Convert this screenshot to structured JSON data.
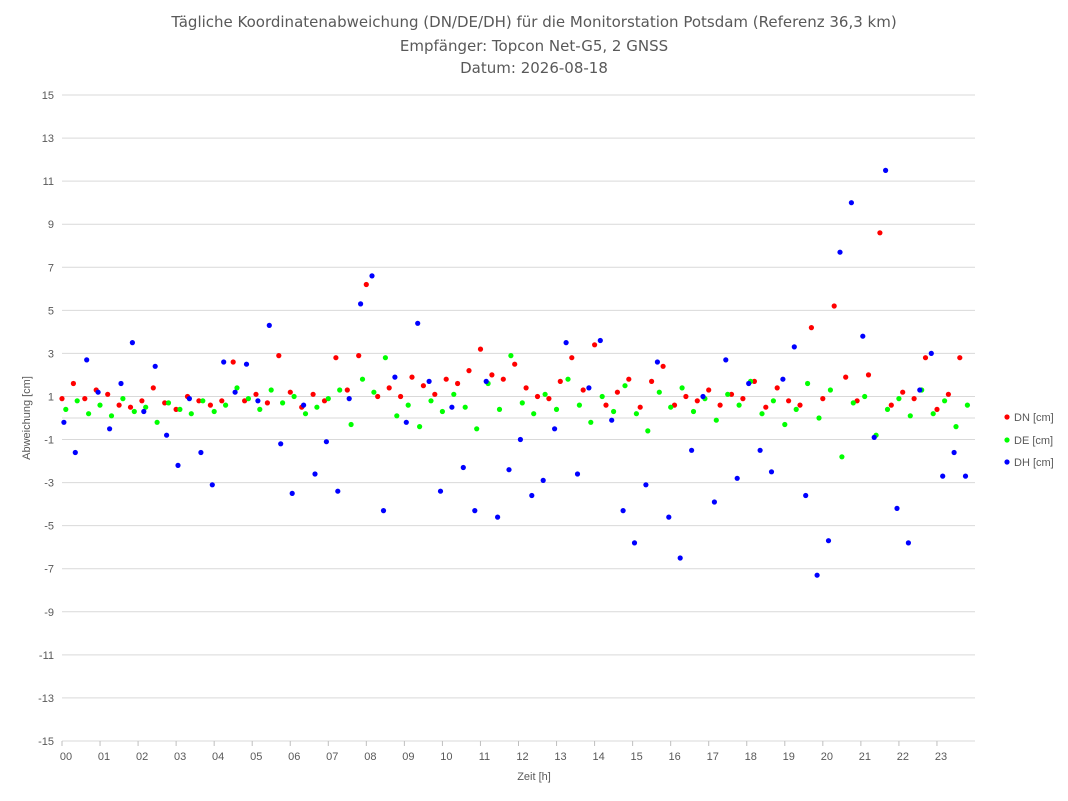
{
  "title_lines": [
    "Tägliche Koordinatenabweichung (DN/DE/DH) für die Monitorstation Potsdam (Referenz 36,3 km)",
    "Empfänger: Topcon Net-G5, 2 GNSS",
    "Datum: 2026-08-18"
  ],
  "chart_data": {
    "type": "scatter",
    "title": "Tägliche Koordinatenabweichung (DN/DE/DH) für die Monitorstation Potsdam (Referenz 36,3 km)",
    "subtitle": [
      "Empfänger: Topcon Net-G5, 2 GNSS",
      "Datum: 2026-08-18"
    ],
    "xlabel": "Zeit [h]",
    "ylabel": "Abweichung [cm]",
    "xlim": [
      0,
      24
    ],
    "ylim": [
      -15,
      15
    ],
    "x_tick_labels": [
      "00",
      "01",
      "02",
      "03",
      "04",
      "05",
      "06",
      "07",
      "08",
      "09",
      "10",
      "11",
      "12",
      "13",
      "14",
      "15",
      "16",
      "17",
      "18",
      "19",
      "20",
      "21",
      "22",
      "23"
    ],
    "y_ticks": [
      15,
      13,
      11,
      9,
      7,
      5,
      3,
      1,
      -1,
      -3,
      -5,
      -7,
      -9,
      -11,
      -13,
      -15
    ],
    "y_tick_labels": [
      "15",
      "13",
      "11",
      "9",
      "7",
      "5",
      "3",
      "1",
      "-1",
      "-3",
      "-5",
      "-7",
      "-9",
      "-11",
      "-13",
      "-15"
    ],
    "grid": "horizontal",
    "legend_position": "right",
    "series": [
      {
        "name": "DN [cm]",
        "color": "#ff0000",
        "x": [
          0.0,
          0.3,
          0.6,
          0.9,
          1.2,
          1.5,
          1.8,
          2.1,
          2.4,
          2.7,
          3.0,
          3.3,
          3.6,
          3.9,
          4.2,
          4.5,
          4.8,
          5.1,
          5.4,
          5.7,
          6.0,
          6.3,
          6.6,
          6.9,
          7.2,
          7.5,
          7.8,
          8.0,
          8.3,
          8.6,
          8.9,
          9.2,
          9.5,
          9.8,
          10.1,
          10.4,
          10.7,
          11.0,
          11.3,
          11.6,
          11.9,
          12.2,
          12.5,
          12.8,
          13.1,
          13.4,
          13.7,
          14.0,
          14.3,
          14.6,
          14.9,
          15.2,
          15.5,
          15.8,
          16.1,
          16.4,
          16.7,
          17.0,
          17.3,
          17.6,
          17.9,
          18.2,
          18.5,
          18.8,
          19.1,
          19.4,
          19.7,
          20.0,
          20.3,
          20.6,
          20.9,
          21.2,
          21.5,
          21.8,
          22.1,
          22.4,
          22.7,
          23.0,
          23.3,
          23.6
        ],
        "y": [
          0.9,
          1.6,
          0.9,
          1.3,
          1.1,
          0.6,
          0.5,
          0.8,
          1.4,
          0.7,
          0.4,
          1.0,
          0.8,
          0.6,
          0.8,
          2.6,
          0.8,
          1.1,
          0.7,
          2.9,
          1.2,
          0.5,
          1.1,
          0.8,
          2.8,
          1.3,
          2.9,
          6.2,
          1.0,
          1.4,
          1.0,
          1.9,
          1.5,
          1.1,
          1.8,
          1.6,
          2.2,
          3.2,
          2.0,
          1.8,
          2.5,
          1.4,
          1.0,
          0.9,
          1.7,
          2.8,
          1.3,
          3.4,
          0.6,
          1.2,
          1.8,
          0.5,
          1.7,
          2.4,
          0.6,
          1.0,
          0.8,
          1.3,
          0.6,
          1.1,
          0.9,
          1.7,
          0.5,
          1.4,
          0.8,
          0.6,
          4.2,
          0.9,
          5.2,
          1.9,
          0.8,
          2.0,
          8.6,
          0.6,
          1.2,
          0.9,
          2.8,
          0.4,
          1.1,
          2.8
        ]
      },
      {
        "name": "DE [cm]",
        "color": "#00ff00",
        "x": [
          0.1,
          0.4,
          0.7,
          1.0,
          1.3,
          1.6,
          1.9,
          2.2,
          2.5,
          2.8,
          3.1,
          3.4,
          3.7,
          4.0,
          4.3,
          4.6,
          4.9,
          5.2,
          5.5,
          5.8,
          6.1,
          6.4,
          6.7,
          7.0,
          7.3,
          7.6,
          7.9,
          8.2,
          8.5,
          8.8,
          9.1,
          9.4,
          9.7,
          10.0,
          10.3,
          10.6,
          10.9,
          11.2,
          11.5,
          11.8,
          12.1,
          12.4,
          12.7,
          13.0,
          13.3,
          13.6,
          13.9,
          14.2,
          14.5,
          14.8,
          15.1,
          15.4,
          15.7,
          16.0,
          16.3,
          16.6,
          16.9,
          17.2,
          17.5,
          17.8,
          18.1,
          18.4,
          18.7,
          19.0,
          19.3,
          19.6,
          19.9,
          20.2,
          20.5,
          20.8,
          21.1,
          21.4,
          21.7,
          22.0,
          22.3,
          22.6,
          22.9,
          23.2,
          23.5,
          23.8
        ],
        "y": [
          0.4,
          0.8,
          0.2,
          0.6,
          0.1,
          0.9,
          0.3,
          0.5,
          -0.2,
          0.7,
          0.4,
          0.2,
          0.8,
          0.3,
          0.6,
          1.4,
          0.9,
          0.4,
          1.3,
          0.7,
          1.0,
          0.2,
          0.5,
          0.9,
          1.3,
          -0.3,
          1.8,
          1.2,
          2.8,
          0.1,
          0.6,
          -0.4,
          0.8,
          0.3,
          1.1,
          0.5,
          -0.5,
          1.6,
          0.4,
          2.9,
          0.7,
          0.2,
          1.1,
          0.4,
          1.8,
          0.6,
          -0.2,
          1.0,
          0.3,
          1.5,
          0.2,
          -0.6,
          1.2,
          0.5,
          1.4,
          0.3,
          0.9,
          -0.1,
          1.1,
          0.6,
          1.7,
          0.2,
          0.8,
          -0.3,
          0.4,
          1.6,
          0.0,
          1.3,
          -1.8,
          0.7,
          1.0,
          -0.8,
          0.4,
          0.9,
          0.1,
          1.3,
          0.2,
          0.8,
          -0.4,
          0.6
        ]
      },
      {
        "name": "DH [cm]",
        "color": "#0000ff",
        "x": [
          0.05,
          0.35,
          0.65,
          0.95,
          1.25,
          1.55,
          1.85,
          2.15,
          2.45,
          2.75,
          3.05,
          3.35,
          3.65,
          3.95,
          4.25,
          4.55,
          4.85,
          5.15,
          5.45,
          5.75,
          6.05,
          6.35,
          6.65,
          6.95,
          7.25,
          7.55,
          7.85,
          8.15,
          8.45,
          8.75,
          9.05,
          9.35,
          9.65,
          9.95,
          10.25,
          10.55,
          10.85,
          11.15,
          11.45,
          11.75,
          12.05,
          12.35,
          12.65,
          12.95,
          13.25,
          13.55,
          13.85,
          14.15,
          14.45,
          14.75,
          15.05,
          15.35,
          15.65,
          15.95,
          16.25,
          16.55,
          16.85,
          17.15,
          17.45,
          17.75,
          18.05,
          18.35,
          18.65,
          18.95,
          19.25,
          19.55,
          19.85,
          20.15,
          20.45,
          20.75,
          21.05,
          21.35,
          21.65,
          21.95,
          22.25,
          22.55,
          22.85,
          23.15,
          23.45,
          23.75
        ],
        "y": [
          -0.2,
          -1.6,
          2.7,
          1.2,
          -0.5,
          1.6,
          3.5,
          0.3,
          2.4,
          -0.8,
          -2.2,
          0.9,
          -1.6,
          -3.1,
          2.6,
          1.2,
          2.5,
          0.8,
          4.3,
          -1.2,
          -3.5,
          0.6,
          -2.6,
          -1.1,
          -3.4,
          0.9,
          5.3,
          6.6,
          -4.3,
          1.9,
          -0.2,
          4.4,
          1.7,
          -3.4,
          0.5,
          -2.3,
          -4.3,
          1.7,
          -4.6,
          -2.4,
          -1.0,
          -3.6,
          -2.9,
          -0.5,
          3.5,
          -2.6,
          1.4,
          3.6,
          -0.1,
          -4.3,
          -5.8,
          -3.1,
          2.6,
          -4.6,
          -6.5,
          -1.5,
          1.0,
          -3.9,
          2.7,
          -2.8,
          1.6,
          -1.5,
          -2.5,
          1.8,
          3.3,
          -3.6,
          -7.3,
          -5.7,
          7.7,
          10.0,
          3.8,
          -0.9,
          11.5,
          -4.2,
          -5.8,
          1.3,
          3.0,
          -2.7,
          -1.6,
          -2.7
        ]
      }
    ]
  },
  "legend": [
    {
      "label": "DN [cm]",
      "color": "#ff0000"
    },
    {
      "label": "DE [cm]",
      "color": "#00ff00"
    },
    {
      "label": "DH [cm]",
      "color": "#0000ff"
    }
  ]
}
